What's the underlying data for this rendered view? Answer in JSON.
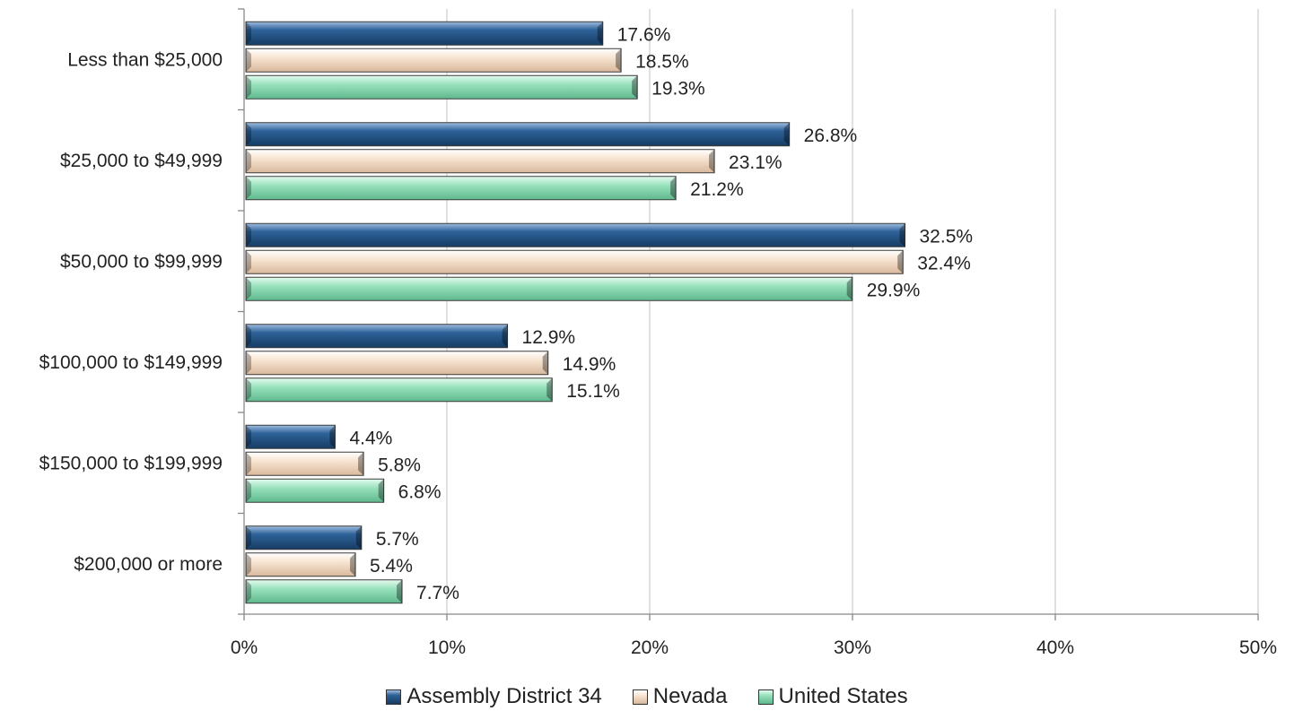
{
  "chart_data": {
    "type": "bar",
    "orientation": "horizontal",
    "categories": [
      "Less than $25,000",
      "$25,000 to $49,999",
      "$50,000 to $99,999",
      "$100,000 to $149,999",
      "$150,000 to $199,999",
      "$200,000 or more"
    ],
    "series": [
      {
        "name": "Assembly District 34",
        "color": "#1f4e79",
        "values": [
          17.6,
          26.8,
          32.5,
          12.9,
          4.4,
          5.7
        ],
        "labels": [
          "17.6%",
          "26.8%",
          "32.5%",
          "12.9%",
          "4.4%",
          "5.7%"
        ]
      },
      {
        "name": "Nevada",
        "color": "#f5dcc4",
        "values": [
          18.5,
          23.1,
          32.4,
          14.9,
          5.8,
          5.4
        ],
        "labels": [
          "18.5%",
          "23.1%",
          "32.4%",
          "14.9%",
          "5.8%",
          "5.4%"
        ]
      },
      {
        "name": "United States",
        "color": "#8fdcb4",
        "values": [
          19.3,
          21.2,
          29.9,
          15.1,
          6.8,
          7.7
        ],
        "labels": [
          "19.3%",
          "21.2%",
          "29.9%",
          "15.1%",
          "6.8%",
          "7.7%"
        ]
      }
    ],
    "xlim": [
      0,
      50
    ],
    "xticks": [
      0,
      10,
      20,
      30,
      40,
      50
    ],
    "xtick_labels": [
      "0%",
      "10%",
      "20%",
      "30%",
      "40%",
      "50%"
    ],
    "grid": "vertical",
    "legend": "bottom-center"
  }
}
